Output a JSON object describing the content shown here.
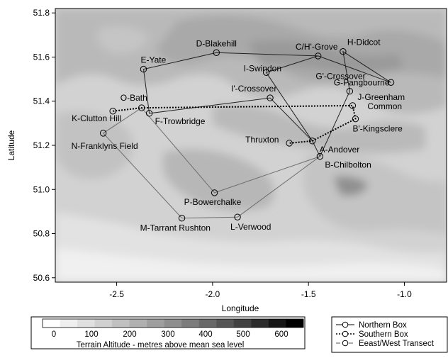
{
  "chart_data": {
    "type": "scatter",
    "title": "",
    "xlabel": "Longitude",
    "ylabel": "Latitude",
    "xlim": [
      -2.82,
      -0.78
    ],
    "ylim": [
      50.58,
      51.82
    ],
    "x_ticks": [
      -2.5,
      -2.0,
      -1.5,
      -1.0
    ],
    "x_tick_labels": [
      "-2.5",
      "-2.0",
      "-1.5",
      "-1.0"
    ],
    "y_ticks": [
      50.6,
      50.8,
      51.0,
      51.2,
      51.4,
      51.6,
      51.8
    ],
    "y_tick_labels": [
      "50.6",
      "50.8",
      "51.0",
      "51.2",
      "51.4",
      "51.6",
      "51.8"
    ],
    "grid": false,
    "background": "grayscale terrain altitude map of southern England",
    "points": [
      {
        "name": "D-Blakehill",
        "x": -1.98,
        "y": 51.62
      },
      {
        "name": "C/H'-Grove",
        "x": -1.45,
        "y": 51.605
      },
      {
        "name": "H-Didcot",
        "x": -1.32,
        "y": 51.625
      },
      {
        "name": "G-Pangbourne",
        "x": -1.07,
        "y": 51.485
      },
      {
        "name": "E-Yate",
        "x": -2.36,
        "y": 51.545
      },
      {
        "name": "I-Swindon",
        "x": -1.72,
        "y": 51.53
      },
      {
        "name": "G'-Crossover",
        "x": -1.285,
        "y": 51.445
      },
      {
        "name": "J-Greenham Common",
        "x": -1.27,
        "y": 51.38
      },
      {
        "name": "O-Bath",
        "x": -2.37,
        "y": 51.37
      },
      {
        "name": "K-Clutton Hill",
        "x": -2.52,
        "y": 51.355
      },
      {
        "name": "F-Trowbridge",
        "x": -2.33,
        "y": 51.345
      },
      {
        "name": "I'-Crossover",
        "x": -1.7,
        "y": 51.415
      },
      {
        "name": "B'-Kingsclere",
        "x": -1.255,
        "y": 51.32
      },
      {
        "name": "N-Franklyns Field",
        "x": -2.57,
        "y": 51.255
      },
      {
        "name": "Thruxton",
        "x": -1.6,
        "y": 51.21
      },
      {
        "name": "A-Andover",
        "x": -1.48,
        "y": 51.22
      },
      {
        "name": "B-Chilbolton",
        "x": -1.44,
        "y": 51.15
      },
      {
        "name": "P-Bowerchalke",
        "x": -1.99,
        "y": 50.985
      },
      {
        "name": "M-Tarrant Rushton",
        "x": -2.16,
        "y": 50.87
      },
      {
        "name": "L-Verwood",
        "x": -1.87,
        "y": 50.875
      }
    ],
    "series": [
      {
        "name": "Northern Box",
        "style": "solid",
        "color": "#222222",
        "path": [
          "A-Andover",
          "I-Swindon",
          "C/H'-Grove",
          "D-Blakehill",
          "E-Yate",
          "F-Trowbridge",
          "I'-Crossover",
          "A-Andover",
          "B-Chilbolton",
          "G'-Crossover",
          "H-Didcot",
          "G-Pangbourne",
          "C/H'-Grove"
        ]
      },
      {
        "name": "Southern Box",
        "style": "dotted",
        "color": "#000000",
        "path": [
          "K-Clutton Hill",
          "O-Bath",
          "J-Greenham Common",
          "B'-Kingsclere",
          "A-Andover",
          "Thruxton"
        ]
      },
      {
        "name": "Eeast/West Transect",
        "style": "dashed",
        "color": "#666666",
        "path": [
          "B-Chilbolton",
          "L-Verwood",
          "M-Tarrant Rushton",
          "N-Franklyns Field",
          "O-Bath",
          "P-Bowerchalke",
          "B-Chilbolton"
        ]
      }
    ],
    "legend": {
      "placement": "bottom-right",
      "entries": [
        "Northern Box",
        "Southern Box",
        "Eeast/West Transect"
      ]
    },
    "colorbar": {
      "title": "Terrain Altitude - metres above mean sea level",
      "ticks": [
        "0",
        "100",
        "200",
        "300",
        "400",
        "500",
        "600"
      ],
      "colors": [
        "#ffffff",
        "#efefef",
        "#e0e0e0",
        "#d0d0d0",
        "#c0c0c0",
        "#b0b0b0",
        "#9f9f9f",
        "#8e8e8e",
        "#7c7c7c",
        "#696969",
        "#555555",
        "#414141",
        "#2c2c2c",
        "#161616",
        "#000000"
      ]
    }
  }
}
